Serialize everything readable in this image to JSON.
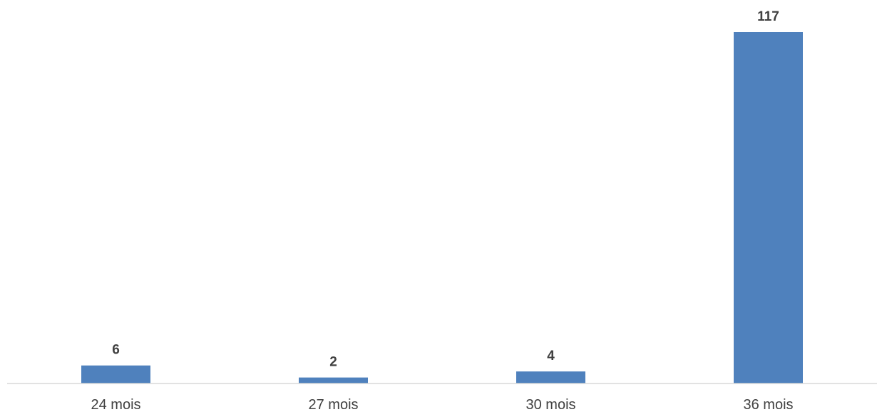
{
  "chart_data": {
    "type": "bar",
    "categories": [
      "24 mois",
      "27 mois",
      "30 mois",
      "36 mois"
    ],
    "values": [
      6,
      2,
      4,
      117
    ],
    "title": "",
    "xlabel": "",
    "ylabel": "",
    "ylim": [
      0,
      117
    ],
    "grid": false,
    "legend": "none",
    "data_labels": [
      "6",
      "2",
      "4",
      "117"
    ],
    "colors": {
      "bar": "#4f81bd",
      "axis": "#d9d9d9",
      "text": "#404040"
    }
  }
}
